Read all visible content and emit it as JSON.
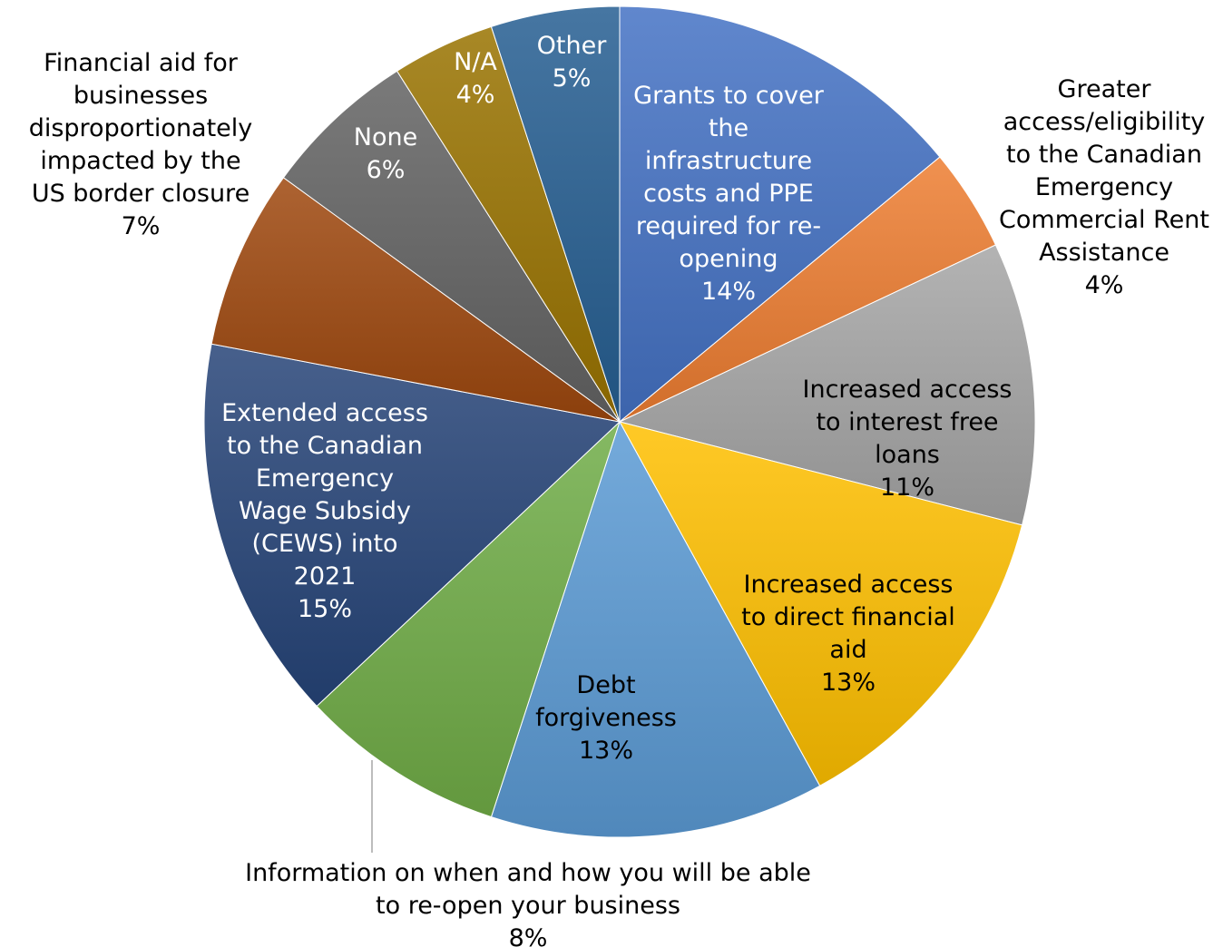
{
  "chart_data": {
    "type": "pie",
    "title": "",
    "start_angle_deg": 0,
    "direction": "clockwise",
    "slices": [
      {
        "label": "Grants to cover the infrastructure costs and PPE required for re-opening",
        "value": 14,
        "pct_label": "14%",
        "color": "#4472c4",
        "label_lines": [
          "Grants to cover",
          "the",
          "infrastructure",
          "costs and PPE",
          "required for re-",
          "opening",
          "14%"
        ],
        "label_color": "#ffffff"
      },
      {
        "label": "Greater access/eligibility to the Canadian Emergency Commercial Rent Assistance",
        "value": 4,
        "pct_label": "4%",
        "color": "#ed7d31",
        "label_lines": [
          "Greater",
          "access/eligibility",
          "to the Canadian",
          "Emergency",
          "Commercial Rent",
          "Assistance",
          "4%"
        ],
        "label_color": "#000000"
      },
      {
        "label": "Increased access to interest free loans",
        "value": 11,
        "pct_label": "11%",
        "color": "#a5a5a5",
        "label_lines": [
          "Increased access",
          "to interest free",
          "loans",
          "11%"
        ],
        "label_color": "#000000"
      },
      {
        "label": "Increased access to direct financial aid",
        "value": 13,
        "pct_label": "13%",
        "color": "#ffc000",
        "label_lines": [
          "Increased access",
          "to direct financial",
          "aid",
          "13%"
        ],
        "label_color": "#000000"
      },
      {
        "label": "Debt forgiveness",
        "value": 13,
        "pct_label": "13%",
        "color": "#5b9bd5",
        "label_lines": [
          "Debt",
          "forgiveness",
          "13%"
        ],
        "label_color": "#000000"
      },
      {
        "label": "Information on when and how you will be able to re-open your business",
        "value": 8,
        "pct_label": "8%",
        "color": "#70ad47",
        "label_lines": [
          "Information on when and how you will be able",
          "to re-open your business",
          "8%"
        ],
        "label_color": "#000000"
      },
      {
        "label": "Extended access to the Canadian Emergency Wage Subsidy (CEWS) into 2021",
        "value": 15,
        "pct_label": "15%",
        "color": "#264478",
        "label_lines": [
          "Extended access",
          "to the Canadian",
          "Emergency",
          "Wage Subsidy",
          "(CEWS) into",
          "2021",
          "15%"
        ],
        "label_color": "#ffffff"
      },
      {
        "label": "Financial aid for businesses disproportionately impacted by the US border closure",
        "value": 7,
        "pct_label": "7%",
        "color": "#9e480e",
        "label_lines": [
          "Financial aid for",
          "businesses",
          "disproportionately",
          "impacted by the",
          "US border closure",
          "7%"
        ],
        "label_color": "#000000"
      },
      {
        "label": "None",
        "value": 6,
        "pct_label": "6%",
        "color": "#636363",
        "label_lines": [
          "None",
          "6%"
        ],
        "label_color": "#ffffff"
      },
      {
        "label": "N/A",
        "value": 4,
        "pct_label": "4%",
        "color": "#997300",
        "label_lines": [
          "N/A",
          "4%"
        ],
        "label_color": "#ffffff"
      },
      {
        "label": "Other",
        "value": 5,
        "pct_label": "5%",
        "color": "#255e91",
        "label_lines": [
          "Other",
          "5%"
        ],
        "label_color": "#ffffff"
      }
    ]
  }
}
